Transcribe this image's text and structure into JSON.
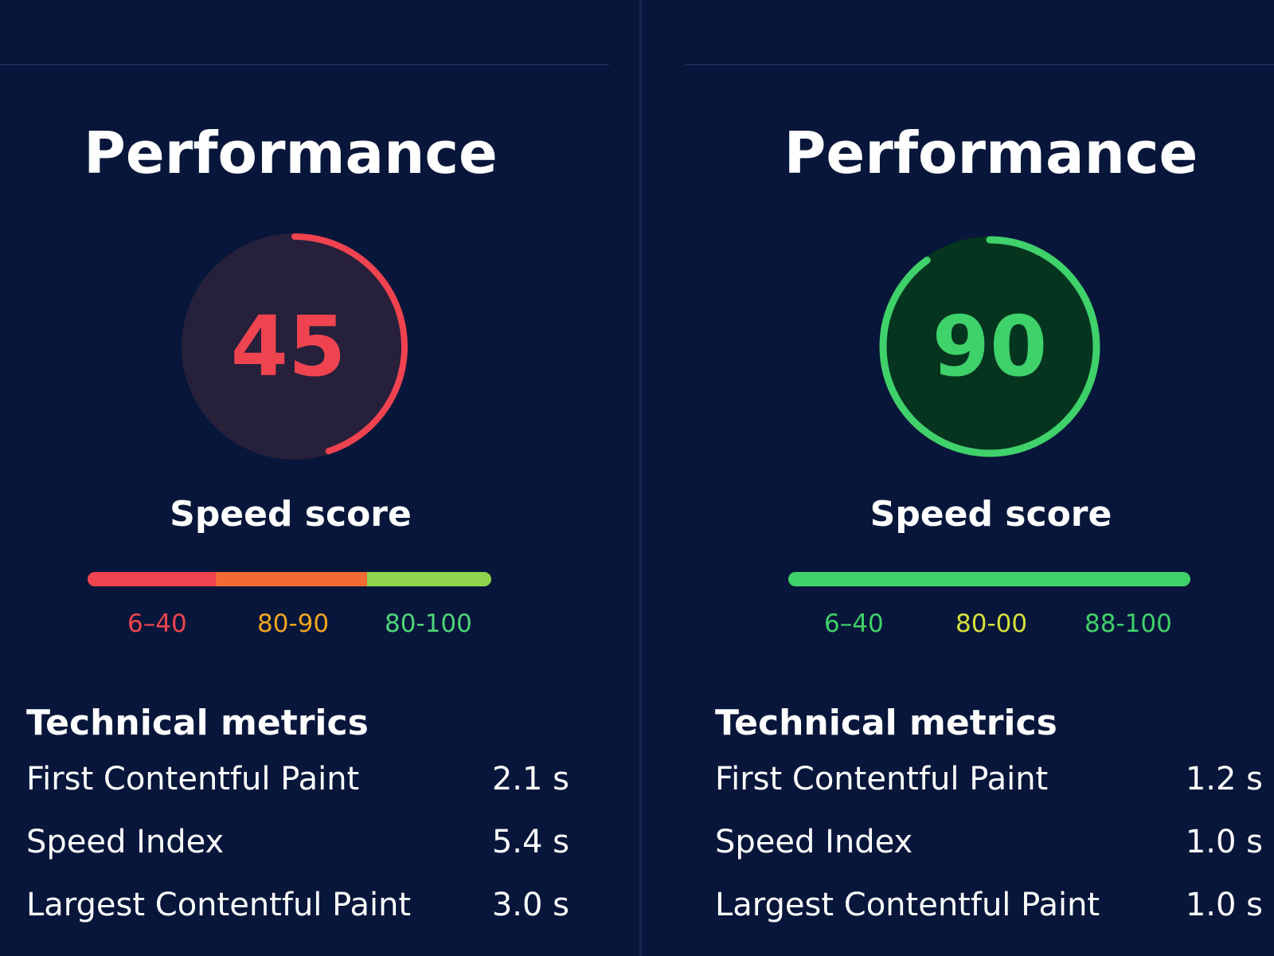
{
  "panels": [
    {
      "title": "Performance",
      "score": 45,
      "score_label": "Speed score",
      "ranges": [
        "6–40",
        "80-90",
        "80-100"
      ],
      "metrics_title": "Technical metrics",
      "metrics": [
        [
          "First Contentful Paint",
          "2.1 s"
        ],
        [
          "Speed Index",
          "5.4 s"
        ],
        [
          "Largest Contentful Paint",
          "3.0 s"
        ]
      ]
    },
    {
      "title": "Performance",
      "score": 90,
      "score_label": "Speed score",
      "ranges": [
        "6–40",
        "80-00",
        "88-100"
      ],
      "metrics_title": "Technical metrics",
      "metrics": [
        [
          "First Contentful Paint",
          "1.2 s"
        ],
        [
          "Speed Index",
          "1.0 s"
        ],
        [
          "Largest Contentful Paint",
          "1.0 s"
        ]
      ]
    }
  ]
}
